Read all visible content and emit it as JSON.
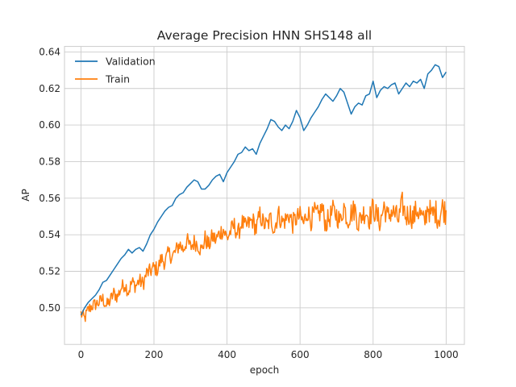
{
  "chart_data": {
    "type": "line",
    "title": "Average Precision HNN SHS148 all",
    "xlabel": "epoch",
    "ylabel": "AP",
    "xlim": [
      -45,
      1050
    ],
    "ylim": [
      0.48,
      0.643
    ],
    "xticks": [
      0,
      200,
      400,
      600,
      800,
      1000
    ],
    "yticks": [
      0.5,
      0.52,
      0.54,
      0.56,
      0.58,
      0.6,
      0.62,
      0.64
    ],
    "xtick_labels": [
      "0",
      "200",
      "400",
      "600",
      "800",
      "1000"
    ],
    "ytick_labels": [
      "0.50",
      "0.52",
      "0.54",
      "0.56",
      "0.58",
      "0.60",
      "0.62",
      "0.64"
    ],
    "grid": true,
    "legend_position": "top-left",
    "series": [
      {
        "name": "Validation",
        "color": "#1f77b4",
        "x": [
          0,
          10,
          20,
          30,
          40,
          50,
          60,
          70,
          80,
          90,
          100,
          110,
          120,
          130,
          140,
          150,
          160,
          170,
          180,
          190,
          200,
          210,
          220,
          230,
          240,
          250,
          260,
          270,
          280,
          290,
          300,
          310,
          320,
          330,
          340,
          350,
          360,
          370,
          380,
          390,
          400,
          410,
          420,
          430,
          440,
          450,
          460,
          470,
          480,
          490,
          500,
          510,
          520,
          530,
          540,
          550,
          560,
          570,
          580,
          590,
          600,
          610,
          620,
          630,
          640,
          650,
          660,
          670,
          680,
          690,
          700,
          710,
          720,
          730,
          740,
          750,
          760,
          770,
          780,
          790,
          800,
          810,
          820,
          830,
          840,
          850,
          860,
          870,
          880,
          890,
          900,
          910,
          920,
          930,
          940,
          950,
          960,
          970,
          980,
          990,
          1000
        ],
        "values": [
          0.496,
          0.5,
          0.503,
          0.505,
          0.507,
          0.51,
          0.514,
          0.515,
          0.518,
          0.521,
          0.524,
          0.527,
          0.529,
          0.532,
          0.53,
          0.532,
          0.533,
          0.531,
          0.535,
          0.54,
          0.543,
          0.547,
          0.55,
          0.553,
          0.555,
          0.556,
          0.56,
          0.562,
          0.563,
          0.566,
          0.568,
          0.57,
          0.569,
          0.565,
          0.565,
          0.567,
          0.57,
          0.572,
          0.573,
          0.569,
          0.574,
          0.577,
          0.58,
          0.584,
          0.585,
          0.588,
          0.586,
          0.587,
          0.584,
          0.59,
          0.594,
          0.598,
          0.603,
          0.602,
          0.599,
          0.597,
          0.6,
          0.598,
          0.602,
          0.608,
          0.604,
          0.597,
          0.6,
          0.604,
          0.607,
          0.61,
          0.614,
          0.617,
          0.615,
          0.613,
          0.616,
          0.62,
          0.618,
          0.612,
          0.606,
          0.61,
          0.612,
          0.611,
          0.616,
          0.617,
          0.624,
          0.615,
          0.619,
          0.621,
          0.62,
          0.622,
          0.623,
          0.617,
          0.62,
          0.623,
          0.621,
          0.624,
          0.623,
          0.625,
          0.62,
          0.628,
          0.63,
          0.633,
          0.632,
          0.626,
          0.629
        ]
      },
      {
        "name": "Train",
        "color": "#ff7f0e",
        "x": [
          0,
          10,
          20,
          30,
          40,
          50,
          60,
          70,
          80,
          90,
          100,
          110,
          120,
          130,
          140,
          150,
          160,
          170,
          180,
          190,
          200,
          210,
          220,
          230,
          240,
          250,
          260,
          270,
          280,
          290,
          300,
          310,
          320,
          330,
          340,
          350,
          360,
          370,
          380,
          390,
          400,
          410,
          420,
          430,
          440,
          450,
          460,
          470,
          480,
          490,
          500,
          510,
          520,
          530,
          540,
          550,
          560,
          570,
          580,
          590,
          600,
          610,
          620,
          630,
          640,
          650,
          660,
          670,
          680,
          690,
          700,
          710,
          720,
          730,
          740,
          750,
          760,
          770,
          780,
          790,
          800,
          810,
          820,
          830,
          840,
          850,
          860,
          870,
          880,
          890,
          900,
          910,
          920,
          930,
          940,
          950,
          960,
          970,
          980,
          990,
          1000
        ],
        "values": [
          0.497,
          0.494,
          0.499,
          0.501,
          0.502,
          0.503,
          0.505,
          0.501,
          0.504,
          0.508,
          0.506,
          0.511,
          0.513,
          0.509,
          0.514,
          0.512,
          0.515,
          0.513,
          0.519,
          0.52,
          0.522,
          0.521,
          0.527,
          0.525,
          0.53,
          0.528,
          0.531,
          0.535,
          0.532,
          0.537,
          0.533,
          0.536,
          0.535,
          0.531,
          0.538,
          0.534,
          0.539,
          0.537,
          0.541,
          0.543,
          0.538,
          0.542,
          0.545,
          0.54,
          0.547,
          0.544,
          0.546,
          0.548,
          0.543,
          0.551,
          0.546,
          0.545,
          0.549,
          0.543,
          0.552,
          0.547,
          0.548,
          0.551,
          0.546,
          0.549,
          0.55,
          0.546,
          0.553,
          0.548,
          0.552,
          0.55,
          0.555,
          0.546,
          0.549,
          0.553,
          0.551,
          0.547,
          0.556,
          0.548,
          0.552,
          0.554,
          0.546,
          0.551,
          0.553,
          0.549,
          0.555,
          0.55,
          0.547,
          0.556,
          0.549,
          0.553,
          0.551,
          0.548,
          0.557,
          0.55,
          0.552,
          0.549,
          0.554,
          0.551,
          0.546,
          0.556,
          0.55,
          0.553,
          0.549,
          0.555,
          0.552
        ],
        "noise_amplitude": 0.006
      }
    ]
  }
}
